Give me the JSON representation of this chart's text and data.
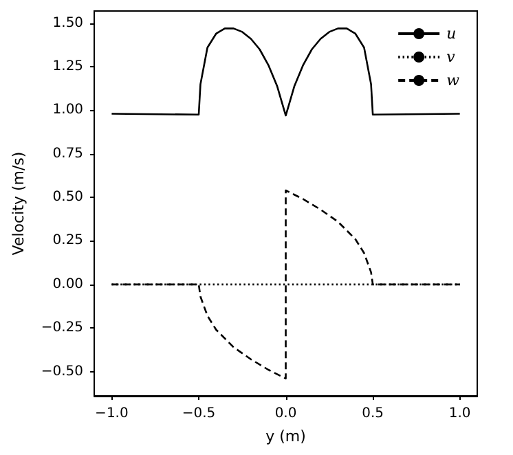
{
  "chart_data": {
    "type": "line",
    "xlabel": "y (m)",
    "ylabel": "Velocity (m/s)",
    "xlim": [
      -1.1,
      1.1
    ],
    "xticks": [
      {
        "value": -1,
        "label": "−1.0"
      },
      {
        "value": -0.5,
        "label": "−0.5"
      },
      {
        "value": 0,
        "label": "0.0"
      },
      {
        "value": 0.5,
        "label": "0.5"
      },
      {
        "value": 1,
        "label": "1.0"
      }
    ],
    "ylim": [
      -0.64,
      1.57
    ],
    "yticks": [
      {
        "value": -0.5,
        "label": "−0.50"
      },
      {
        "value": -0.25,
        "label": "−0.25"
      },
      {
        "value": 0,
        "label": "0.00"
      },
      {
        "value": 0.25,
        "label": "0.25"
      },
      {
        "value": 0.5,
        "label": "0.50"
      },
      {
        "value": 0.75,
        "label": "0.75"
      },
      {
        "value": 1,
        "label": "1.00"
      },
      {
        "value": 1.25,
        "label": "1.25"
      },
      {
        "value": 1.5,
        "label": "1.50"
      }
    ],
    "grid": false,
    "legend": "top right",
    "marker": "none",
    "series": [
      {
        "name": "u",
        "color": "#000000",
        "line_style": "solid",
        "x": [
          -1,
          -0.5,
          -0.49,
          -0.45,
          -0.4,
          -0.35,
          -0.3,
          -0.25,
          -0.2,
          -0.15,
          -0.1,
          -0.05,
          0,
          0.05,
          0.1,
          0.15,
          0.2,
          0.25,
          0.3,
          0.35,
          0.4,
          0.45,
          0.49,
          0.5,
          1
        ],
        "values": [
          0.98,
          0.975,
          1.15,
          1.36,
          1.44,
          1.47,
          1.47,
          1.45,
          1.41,
          1.35,
          1.26,
          1.14,
          0.97,
          1.14,
          1.26,
          1.35,
          1.41,
          1.45,
          1.47,
          1.47,
          1.44,
          1.36,
          1.15,
          0.975,
          0.98
        ]
      },
      {
        "name": "v",
        "color": "#000000",
        "line_style": "dotted",
        "x": [
          -1,
          1
        ],
        "values": [
          0,
          0
        ]
      },
      {
        "name": "w",
        "color": "#000000",
        "line_style": "dashed",
        "x": [
          -1,
          -0.5,
          -0.49,
          -0.45,
          -0.4,
          -0.3,
          -0.2,
          -0.1,
          0,
          0,
          0.1,
          0.2,
          0.3,
          0.4,
          0.45,
          0.49,
          0.5,
          1
        ],
        "values": [
          0,
          0,
          -0.07,
          -0.18,
          -0.26,
          -0.36,
          -0.43,
          -0.49,
          -0.54,
          0.54,
          0.49,
          0.43,
          0.36,
          0.26,
          0.18,
          0.07,
          0,
          0
        ]
      }
    ]
  }
}
